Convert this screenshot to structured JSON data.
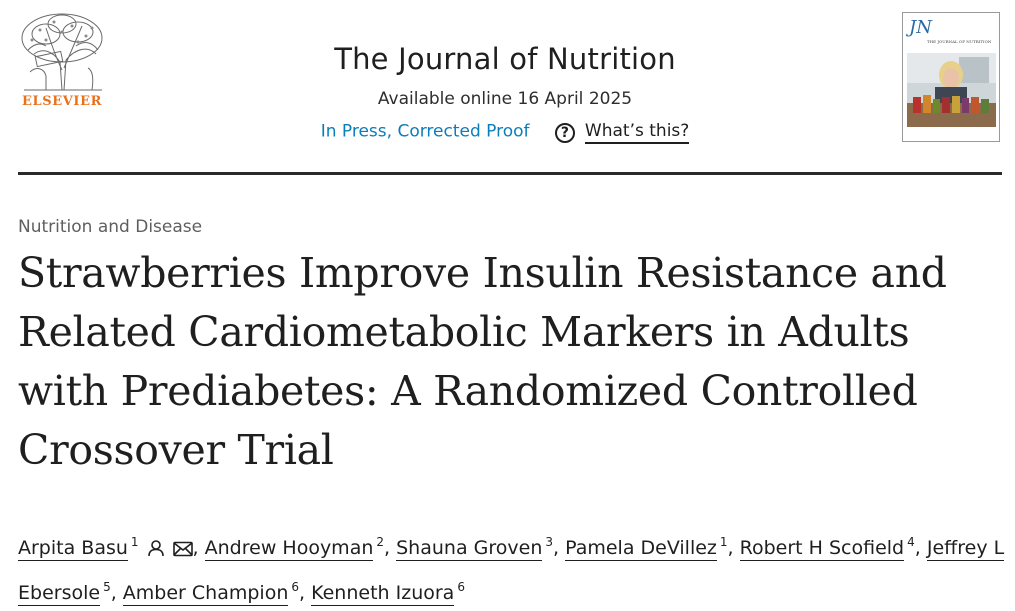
{
  "publisher": {
    "name": "ELSEVIER",
    "logo_icon": "elsevier-tree-icon"
  },
  "journal": {
    "title": "The Journal of Nutrition",
    "available": "Available online 16 April 2025",
    "status": "In Press, Corrected Proof",
    "help_label": "What’s this?",
    "help_icon": "question-circle-icon",
    "cover_title": "JN",
    "cover_subtitle": "THE JOURNAL OF NUTRITION"
  },
  "article": {
    "section": "Nutrition and Disease",
    "title": "Strawberries Improve Insulin Resistance and Related Cardiometabolic Markers in Adults with Prediabetes: A Randomized Controlled Crossover Trial"
  },
  "authors": [
    {
      "name": "Arpita Basu",
      "aff": "1",
      "icons": [
        "person-icon",
        "envelope-icon"
      ]
    },
    {
      "name": "Andrew Hooyman",
      "aff": "2"
    },
    {
      "name": "Shauna Groven",
      "aff": "3"
    },
    {
      "name": "Pamela DeVillez",
      "aff": "1"
    },
    {
      "name": "Robert H Scofield",
      "aff": "4"
    },
    {
      "name": "Jeffrey L Ebersole",
      "aff": "5"
    },
    {
      "name": "Amber Champion",
      "aff": "6"
    },
    {
      "name": "Kenneth Izuora",
      "aff": "6"
    }
  ],
  "colors": {
    "brand_orange": "#e9711c",
    "link_blue": "#0c7dbb",
    "text": "#1f1f1f"
  }
}
